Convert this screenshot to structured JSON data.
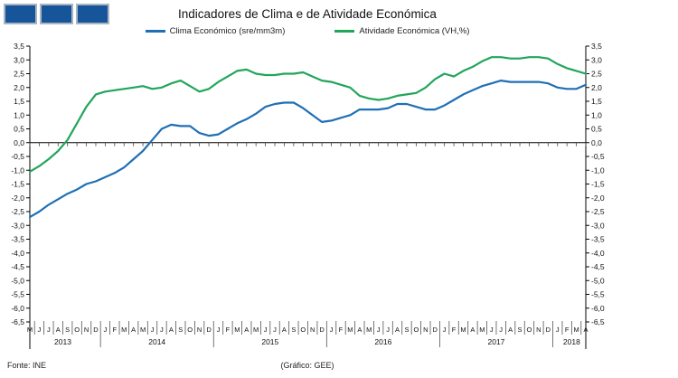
{
  "logo": {
    "square_count": 3,
    "color": "#17559B"
  },
  "title": "Indicadores de Clima e de Atividade Económica",
  "legend": [
    {
      "label": "Clima Económico (sre/mm3m)",
      "color": "#1F6FB5"
    },
    {
      "label": "Atividade Económica (VH,%)",
      "color": "#21A55B"
    }
  ],
  "footer": {
    "source": "Fonte: INE",
    "credit": "(Gráfico: GEE)"
  },
  "chart_data": {
    "type": "line",
    "title": "Indicadores de Clima e de Atividade Económica",
    "xlabel": "",
    "ylabel": "",
    "ylim": [
      -6.5,
      3.5
    ],
    "ytick_step": 0.5,
    "ytick_labels": [
      "3,5",
      "3,0",
      "2,5",
      "2,0",
      "1,5",
      "1,0",
      "0,5",
      "0,0",
      "-0,5",
      "-1,0",
      "-1,5",
      "-2,0",
      "-2,5",
      "-3,0",
      "-3,5",
      "-4,0",
      "-4,5",
      "-5,0",
      "-5,5",
      "-6,0",
      "-6,5"
    ],
    "dual_y_axis": true,
    "grid": false,
    "zero_line": true,
    "legend_position": "top",
    "x_months": [
      "M",
      "J",
      "J",
      "A",
      "S",
      "O",
      "N",
      "D",
      "J",
      "F",
      "M",
      "A",
      "M",
      "J",
      "J",
      "A",
      "S",
      "O",
      "N",
      "D",
      "J",
      "F",
      "M",
      "A",
      "M",
      "J",
      "J",
      "A",
      "S",
      "O",
      "N",
      "D",
      "J",
      "F",
      "M",
      "A",
      "M",
      "J",
      "J",
      "A",
      "S",
      "O",
      "N",
      "D",
      "J",
      "F",
      "M",
      "A",
      "M",
      "J",
      "J",
      "A",
      "S",
      "O",
      "N",
      "D",
      "J",
      "F",
      "M",
      "A"
    ],
    "year_groups": [
      {
        "label": "2013",
        "count": 8
      },
      {
        "label": "2014",
        "count": 12
      },
      {
        "label": "2015",
        "count": 12
      },
      {
        "label": "2016",
        "count": 12
      },
      {
        "label": "2017",
        "count": 12
      },
      {
        "label": "2018",
        "count": 4
      }
    ],
    "series": [
      {
        "name": "Clima Económico (sre/mm3m)",
        "color": "#1F6FB5",
        "values": [
          -2.7,
          -2.5,
          -2.25,
          -2.05,
          -1.85,
          -1.7,
          -1.5,
          -1.4,
          -1.25,
          -1.1,
          -0.9,
          -0.6,
          -0.3,
          0.1,
          0.5,
          0.65,
          0.6,
          0.6,
          0.35,
          0.25,
          0.3,
          0.5,
          0.7,
          0.85,
          1.05,
          1.3,
          1.4,
          1.45,
          1.45,
          1.25,
          1.0,
          0.75,
          0.8,
          0.9,
          1.0,
          1.2,
          1.2,
          1.2,
          1.25,
          1.4,
          1.4,
          1.3,
          1.2,
          1.2,
          1.35,
          1.55,
          1.75,
          1.9,
          2.05,
          2.15,
          2.25,
          2.2,
          2.2,
          2.2,
          2.2,
          2.15,
          2.0,
          1.95,
          1.95,
          2.1
        ]
      },
      {
        "name": "Atividade Económica (VH,%)",
        "color": "#21A55B",
        "values": [
          -1.05,
          -0.85,
          -0.6,
          -0.3,
          0.1,
          0.7,
          1.3,
          1.75,
          1.85,
          1.9,
          1.95,
          2.0,
          2.05,
          1.95,
          2.0,
          2.15,
          2.25,
          2.05,
          1.85,
          1.95,
          2.2,
          2.4,
          2.6,
          2.65,
          2.5,
          2.45,
          2.45,
          2.5,
          2.5,
          2.55,
          2.4,
          2.25,
          2.2,
          2.1,
          2.0,
          1.7,
          1.6,
          1.55,
          1.6,
          1.7,
          1.75,
          1.8,
          2.0,
          2.3,
          2.5,
          2.4,
          2.6,
          2.75,
          2.95,
          3.1,
          3.1,
          3.05,
          3.05,
          3.1,
          3.1,
          3.05,
          2.85,
          2.7,
          2.6,
          2.5
        ]
      }
    ]
  }
}
